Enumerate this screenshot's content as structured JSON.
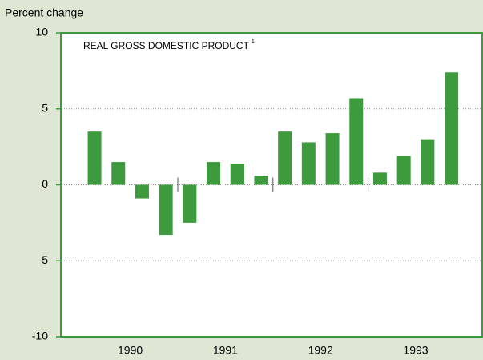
{
  "chart_data": {
    "type": "bar",
    "title": "REAL GROSS DOMESTIC PRODUCT",
    "title_note": "1",
    "y_label": "Percent change",
    "groups": [
      "1990",
      "1991",
      "1992",
      "1993"
    ],
    "values": [
      3.5,
      1.5,
      -0.9,
      -3.3,
      -2.5,
      1.5,
      1.4,
      0.6,
      3.5,
      2.8,
      3.4,
      5.7,
      0.8,
      1.9,
      3.0,
      7.4
    ],
    "color": "#3d9b3d",
    "ylim": [
      -10,
      10
    ],
    "yticks": [
      -10,
      -5,
      0,
      5,
      10
    ],
    "grid": true
  }
}
